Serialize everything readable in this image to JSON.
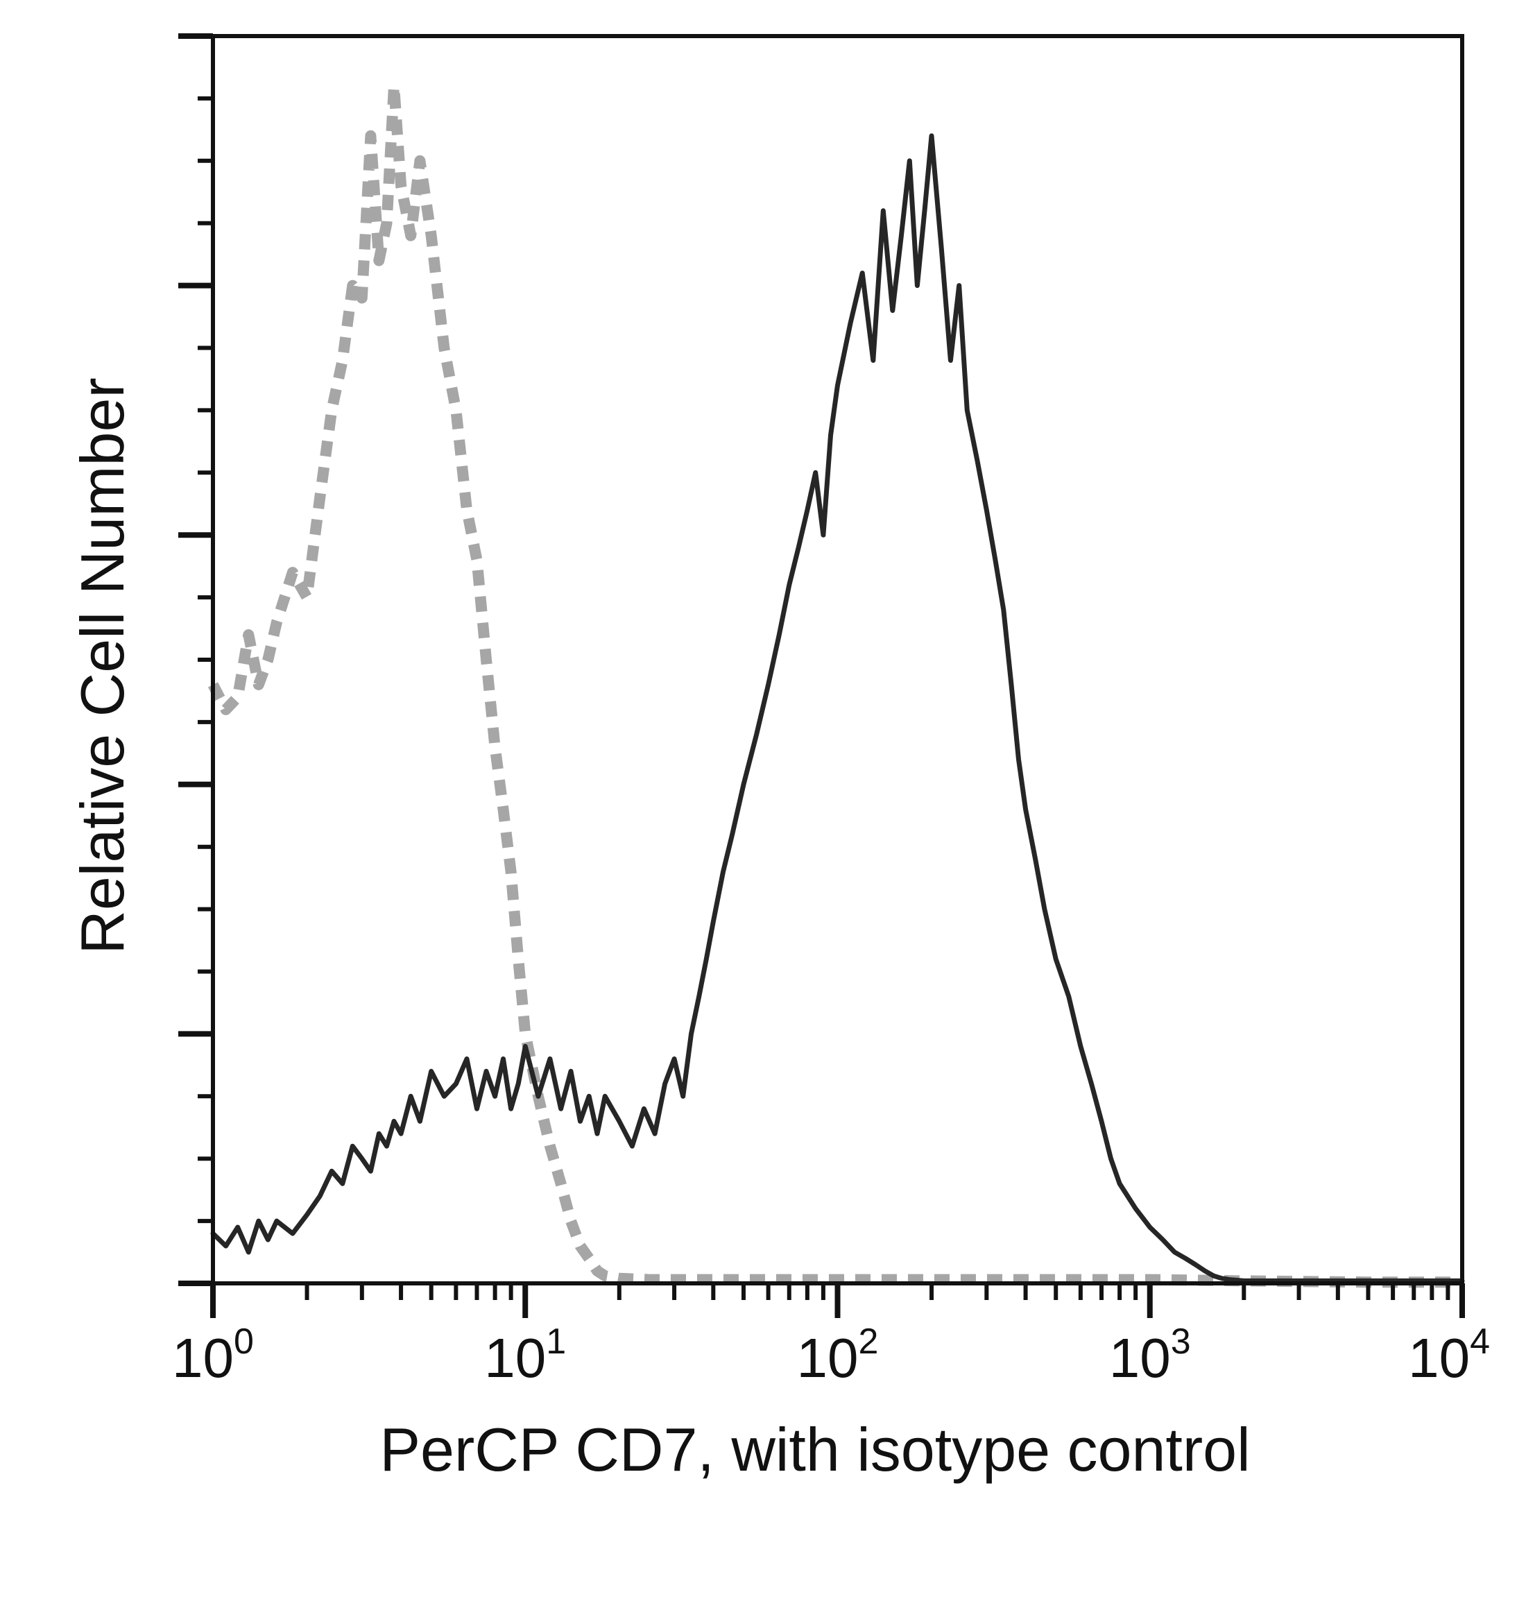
{
  "chart_data": {
    "type": "area",
    "title": "",
    "xlabel": "PerCP CD7, with isotype control",
    "ylabel": "Relative Cell Number",
    "x_scale": "log",
    "xlim": [
      1,
      10000
    ],
    "ylim": [
      0,
      100
    ],
    "y_tick_labels": "none",
    "y_major_ticks": [
      0,
      20,
      40,
      60,
      80,
      100
    ],
    "y_minor_step": 5,
    "x_ticks": [
      {
        "value": 1,
        "base": "10",
        "exp": "0"
      },
      {
        "value": 10,
        "base": "10",
        "exp": "1"
      },
      {
        "value": 100,
        "base": "10",
        "exp": "2"
      },
      {
        "value": 1000,
        "base": "10",
        "exp": "3"
      },
      {
        "value": 10000,
        "base": "10",
        "exp": "4"
      }
    ],
    "grid": false,
    "legend": "none",
    "colors": {
      "isotype": "#a6a6a6",
      "cd7": "#262626",
      "axes": "#111111"
    },
    "series": [
      {
        "style": "gray dashed",
        "x": [
          1.0,
          1.1,
          1.2,
          1.3,
          1.4,
          1.5,
          1.6,
          1.8,
          2.0,
          2.2,
          2.4,
          2.6,
          2.8,
          3.0,
          3.2,
          3.4,
          3.6,
          3.8,
          4.0,
          4.3,
          4.6,
          5.0,
          5.5,
          6.0,
          6.5,
          7.0,
          7.5,
          8.0,
          8.5,
          9.0,
          9.5,
          10,
          11,
          12,
          13,
          14,
          15,
          16,
          17,
          18,
          20,
          25,
          30,
          50,
          100,
          200,
          500,
          1000,
          2000,
          5000,
          10000
        ],
        "y": [
          48,
          46,
          47,
          52,
          48,
          50,
          53,
          57,
          55,
          63,
          70,
          74,
          80,
          79,
          92,
          82,
          85,
          96,
          88,
          84,
          90,
          84,
          75,
          70,
          62,
          58,
          50,
          43,
          38,
          33,
          26,
          20,
          15,
          11,
          8,
          5,
          3,
          2,
          1,
          0.6,
          0.4,
          0.3,
          0.3,
          0.3,
          0.3,
          0.3,
          0.3,
          0.3,
          0.2,
          0.1,
          0.1
        ]
      },
      {
        "style": "black solid",
        "x": [
          1.0,
          1.1,
          1.2,
          1.3,
          1.4,
          1.5,
          1.6,
          1.8,
          2.0,
          2.2,
          2.4,
          2.6,
          2.8,
          3.0,
          3.2,
          3.4,
          3.6,
          3.8,
          4.0,
          4.3,
          4.6,
          5.0,
          5.5,
          6.0,
          6.5,
          7.0,
          7.5,
          8.0,
          8.5,
          9.0,
          9.5,
          10,
          11,
          12,
          13,
          14,
          15,
          16,
          17,
          18,
          20,
          22,
          24,
          26,
          28,
          30,
          32,
          34,
          36,
          38,
          40,
          43,
          46,
          50,
          55,
          60,
          65,
          70,
          75,
          80,
          85,
          90,
          95,
          100,
          110,
          120,
          130,
          140,
          150,
          160,
          170,
          180,
          190,
          200,
          215,
          230,
          245,
          260,
          280,
          300,
          320,
          340,
          360,
          380,
          400,
          430,
          460,
          500,
          550,
          600,
          650,
          700,
          750,
          800,
          900,
          1000,
          1100,
          1200,
          1300,
          1400,
          1500,
          1600,
          1700,
          1800,
          2000,
          2500,
          3000,
          4000,
          5000,
          7000,
          10000
        ],
        "y": [
          4,
          3,
          4.5,
          2.5,
          5,
          3.5,
          5,
          4,
          5.5,
          7,
          9,
          8,
          11,
          10,
          9,
          12,
          11,
          13,
          12,
          15,
          13,
          17,
          15,
          16,
          18,
          14,
          17,
          15,
          18,
          14,
          16,
          19,
          15,
          18,
          14,
          17,
          13,
          15,
          12,
          15,
          13,
          11,
          14,
          12,
          16,
          18,
          15,
          20,
          23,
          26,
          29,
          33,
          36,
          40,
          44,
          48,
          52,
          56,
          59,
          62,
          65,
          60,
          68,
          72,
          77,
          81,
          74,
          86,
          78,
          84,
          90,
          80,
          86,
          92,
          83,
          74,
          80,
          70,
          66,
          62,
          58,
          54,
          48,
          42,
          38,
          34,
          30,
          26,
          23,
          19,
          16,
          13,
          10,
          8,
          6,
          4.5,
          3.5,
          2.5,
          2,
          1.5,
          1,
          0.6,
          0.4,
          0.3,
          0.2,
          0.2,
          0.2,
          0.2,
          0.2,
          0.2,
          0.2
        ]
      }
    ]
  }
}
